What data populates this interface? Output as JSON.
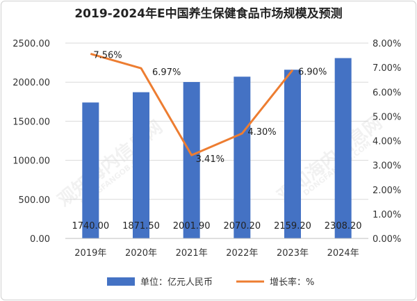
{
  "chart_data": {
    "type": "bar",
    "title": "2019-2024年E中国养生保健食品市场规模及预测",
    "categories": [
      "2019年",
      "2020年",
      "2021年",
      "2022年",
      "2023年",
      "2024年"
    ],
    "series": [
      {
        "name": "单位：亿元人民币",
        "type": "bar",
        "axis": "left",
        "color": "#4472C4",
        "values": [
          1740.0,
          1871.5,
          2001.9,
          2070.2,
          2159.2,
          2308.2
        ],
        "labels": [
          "1740.00",
          "1871.50",
          "2001.90",
          "2070.20",
          "2159.20",
          "2308.20"
        ]
      },
      {
        "name": "增长率：%",
        "type": "line",
        "axis": "right",
        "color": "#ED7D31",
        "values": [
          7.56,
          6.97,
          3.41,
          4.3,
          6.9,
          null
        ],
        "labels": [
          "7.56%",
          "6.97%",
          "3.41%",
          "4.30%",
          "6.90%",
          ""
        ]
      }
    ],
    "y_left": {
      "ylim": [
        0,
        2500
      ],
      "ticks": [
        "0.00",
        "500.00",
        "1000.00",
        "1500.00",
        "2000.00",
        "2500.00"
      ]
    },
    "y_right": {
      "ylim": [
        0,
        8
      ],
      "ticks": [
        "0.00%",
        "1.00%",
        "2.00%",
        "3.00%",
        "4.00%",
        "5.00%",
        "6.00%",
        "7.00%",
        "8.00%"
      ]
    },
    "grid": true,
    "legend": "bottom"
  },
  "watermark": {
    "text_cn": "观知海内信息网",
    "text_en": "DONGFANGOB.COM"
  }
}
